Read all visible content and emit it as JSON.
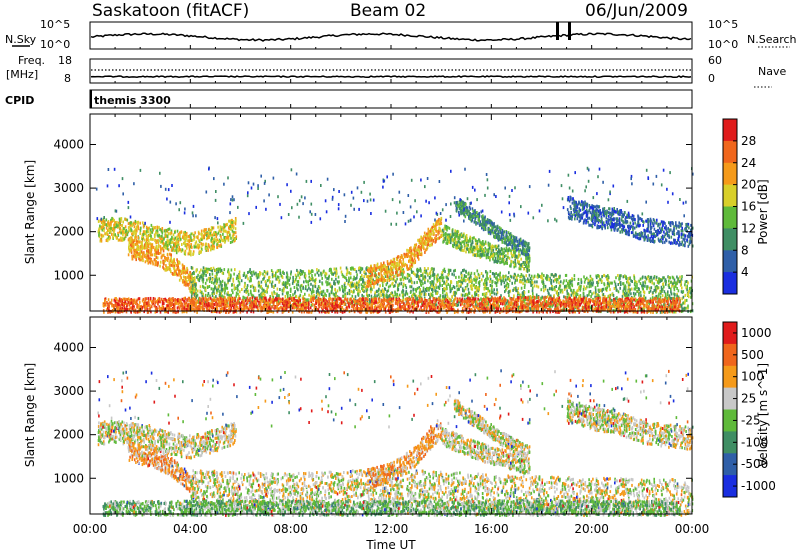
{
  "header": {
    "station": "Saskatoon (fitACF)",
    "beam": "Beam 02",
    "date": "06/Jun/2009"
  },
  "nsky_panel": {
    "left_label": "N.Sky",
    "right_label": "N.Search",
    "left_ticks": [
      "10^5",
      "10^0"
    ],
    "right_ticks": [
      "10^5",
      "10^0"
    ]
  },
  "freq_panel": {
    "left_label_1": "Freq.",
    "left_label_2": "[MHz]",
    "left_ticks": [
      "18",
      "8"
    ],
    "right_ticks": [
      "60",
      "0"
    ],
    "right_label": "Nave"
  },
  "cpid_panel": {
    "label": "CPID",
    "value": "themis 3300"
  },
  "chart_data": [
    {
      "type": "heatmap",
      "name": "power",
      "ylabel": "Slant Range [km]",
      "y_ticks": [
        1000,
        2000,
        3000,
        4000
      ],
      "ylim": [
        180,
        4700
      ],
      "xlim": [
        0,
        24
      ],
      "colorbar_label": "Power [dB]",
      "colorbar_ticks": [
        4,
        8,
        12,
        16,
        20,
        24,
        28
      ],
      "colorbar_colors": [
        "#1a2ee0",
        "#2f5fa8",
        "#3f8e64",
        "#5fba3a",
        "#d8cf2a",
        "#f59a1a",
        "#f0661c",
        "#e01b1b"
      ],
      "scatter_bands": [
        {
          "t": [
            0.3,
            1.0,
            2.0,
            3.0,
            4.0,
            5.0,
            5.8
          ],
          "r": [
            2050,
            2100,
            2000,
            1850,
            1750,
            1900,
            2100
          ],
          "w": 260,
          "level": 4
        },
        {
          "t": [
            1.5,
            2.5,
            3.2,
            3.8,
            4.2
          ],
          "r": [
            1650,
            1500,
            1300,
            1000,
            700
          ],
          "w": 220,
          "level": 5
        },
        {
          "t": [
            4.0,
            6.0,
            8.0,
            10.0,
            12.0,
            14.0,
            16.0,
            18.0,
            20.0,
            22.0,
            24.0
          ],
          "r": [
            800,
            750,
            720,
            780,
            820,
            760,
            700,
            650,
            620,
            600,
            580
          ],
          "w": 420,
          "level": 3
        },
        {
          "t": [
            11.0,
            12.0,
            12.8,
            13.5,
            14.0
          ],
          "r": [
            1000,
            1150,
            1450,
            1900,
            2150
          ],
          "w": 230,
          "level": 5
        },
        {
          "t": [
            14.0,
            15.0,
            16.0,
            17.0,
            17.5
          ],
          "r": [
            2000,
            1750,
            1550,
            1400,
            1300
          ],
          "w": 200,
          "level": 3
        },
        {
          "t": [
            14.5,
            15.5,
            16.5,
            17.5
          ],
          "r": [
            2700,
            2300,
            1900,
            1600
          ],
          "w": 160,
          "level": 2
        },
        {
          "t": [
            19.0,
            20.0,
            21.0,
            22.0,
            23.0,
            24.0
          ],
          "r": [
            2600,
            2400,
            2300,
            2100,
            2000,
            1950
          ],
          "w": 260,
          "level": 1
        },
        {
          "t": [
            0.5,
            6.0,
            12.0,
            18.0,
            23.5
          ],
          "r": [
            300,
            320,
            300,
            330,
            300
          ],
          "w": 200,
          "level": 6
        }
      ]
    },
    {
      "type": "heatmap",
      "name": "velocity",
      "ylabel": "Slant Range [km]",
      "xlabel": "Time UT",
      "x_ticks": [
        "00:00",
        "04:00",
        "08:00",
        "12:00",
        "16:00",
        "20:00",
        "00:00"
      ],
      "y_ticks": [
        1000,
        2000,
        3000,
        4000
      ],
      "ylim": [
        180,
        4700
      ],
      "xlim": [
        0,
        24
      ],
      "colorbar_label": "Velocity [m s^-1]",
      "colorbar_ticks": [
        "1000",
        "500",
        "100",
        "25",
        "-25",
        "-100",
        "-500",
        "-1000"
      ],
      "colorbar_colors": [
        "#1a2ee0",
        "#2f5fa8",
        "#3f8e64",
        "#5fba3a",
        "#c8c8c8",
        "#f59a1a",
        "#f0661c",
        "#e01b1b"
      ],
      "scatter_bands": [
        {
          "t": [
            0.3,
            1.0,
            2.0,
            3.0,
            4.0,
            5.0,
            5.8
          ],
          "r": [
            2050,
            2100,
            2000,
            1850,
            1750,
            1900,
            2100
          ],
          "w": 260,
          "level": 4
        },
        {
          "t": [
            1.5,
            2.5,
            3.2,
            3.8,
            4.2
          ],
          "r": [
            1650,
            1500,
            1300,
            1000,
            700
          ],
          "w": 220,
          "level": 5
        },
        {
          "t": [
            4.0,
            6.0,
            8.0,
            10.0,
            12.0,
            14.0,
            16.0,
            18.0,
            20.0,
            22.0,
            24.0
          ],
          "r": [
            800,
            750,
            720,
            780,
            820,
            760,
            700,
            650,
            620,
            600,
            580
          ],
          "w": 420,
          "level": 4
        },
        {
          "t": [
            11.0,
            12.0,
            12.8,
            13.5,
            14.0
          ],
          "r": [
            1000,
            1150,
            1450,
            1900,
            2150
          ],
          "w": 230,
          "level": 5
        },
        {
          "t": [
            14.0,
            15.0,
            16.0,
            17.0,
            17.5
          ],
          "r": [
            2000,
            1750,
            1550,
            1400,
            1300
          ],
          "w": 200,
          "level": 4
        },
        {
          "t": [
            14.5,
            15.5,
            16.5,
            17.5
          ],
          "r": [
            2700,
            2300,
            1900,
            1600
          ],
          "w": 160,
          "level": 4
        },
        {
          "t": [
            19.0,
            20.0,
            21.0,
            22.0,
            23.0,
            24.0
          ],
          "r": [
            2600,
            2400,
            2300,
            2100,
            2000,
            1950
          ],
          "w": 260,
          "level": 4
        },
        {
          "t": [
            0.5,
            6.0,
            12.0,
            18.0,
            23.5
          ],
          "r": [
            300,
            320,
            300,
            330,
            300
          ],
          "w": 200,
          "level": 3
        }
      ]
    }
  ]
}
